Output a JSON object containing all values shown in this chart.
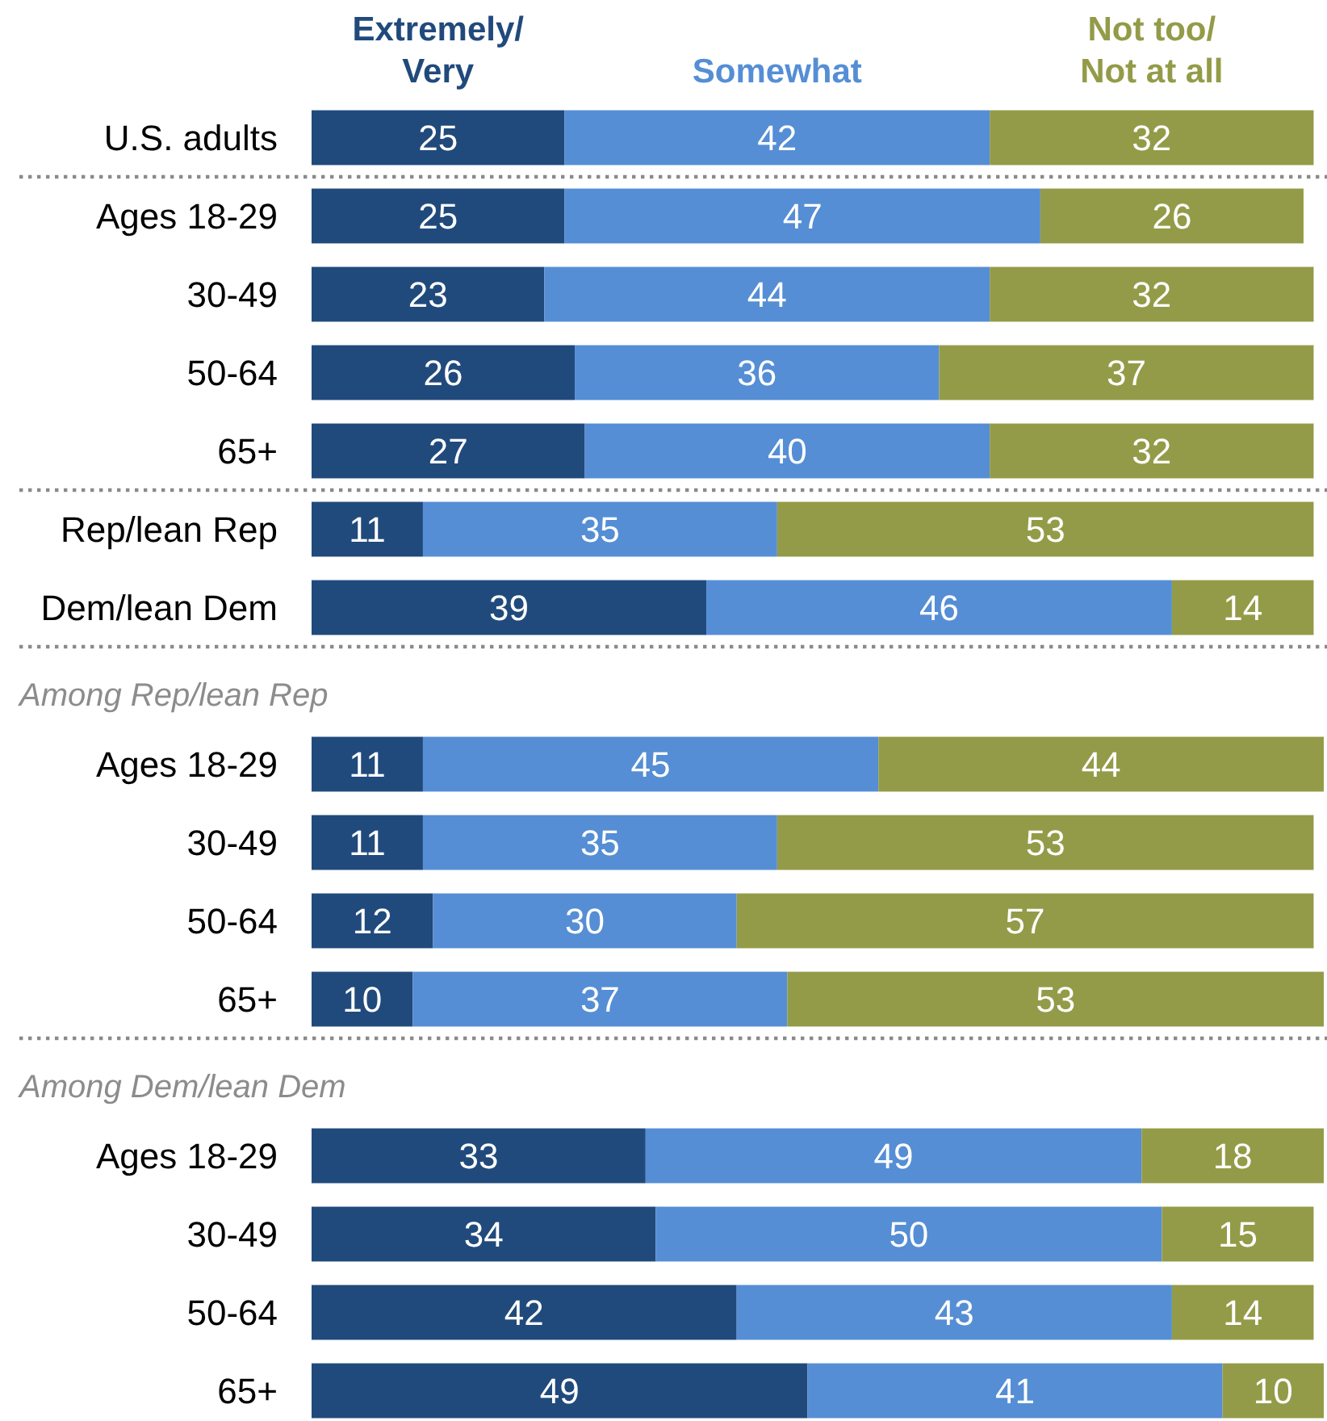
{
  "chart_data": {
    "type": "bar",
    "orientation": "horizontal",
    "stacked": true,
    "legend": "top",
    "data_labels": true,
    "categories": [
      "U.S. adults",
      "Ages 18-29",
      "30-49",
      "50-64",
      "65+",
      "Rep/lean Rep",
      "Dem/lean Dem",
      null,
      "Ages 18-29",
      "30-49",
      "50-64",
      "65+",
      null,
      "Ages 18-29",
      "30-49",
      "50-64",
      "65+"
    ],
    "series": [
      {
        "name": "Extremely/Very",
        "color": "#214a7c",
        "values": [
          25,
          25,
          23,
          26,
          27,
          11,
          39,
          null,
          11,
          11,
          12,
          10,
          null,
          33,
          34,
          42,
          49
        ]
      },
      {
        "name": "Somewhat",
        "color": "#558ed5",
        "values": [
          42,
          47,
          44,
          36,
          40,
          35,
          46,
          null,
          45,
          35,
          30,
          37,
          null,
          49,
          50,
          43,
          41
        ]
      },
      {
        "name": "Not too/Not at all",
        "color": "#949b48",
        "values": [
          32,
          26,
          32,
          37,
          32,
          53,
          14,
          null,
          44,
          53,
          57,
          53,
          null,
          18,
          15,
          14,
          10
        ]
      }
    ],
    "annotations": [
      "Among Rep/lean Rep",
      "Among Dem/lean Dem"
    ]
  }
}
